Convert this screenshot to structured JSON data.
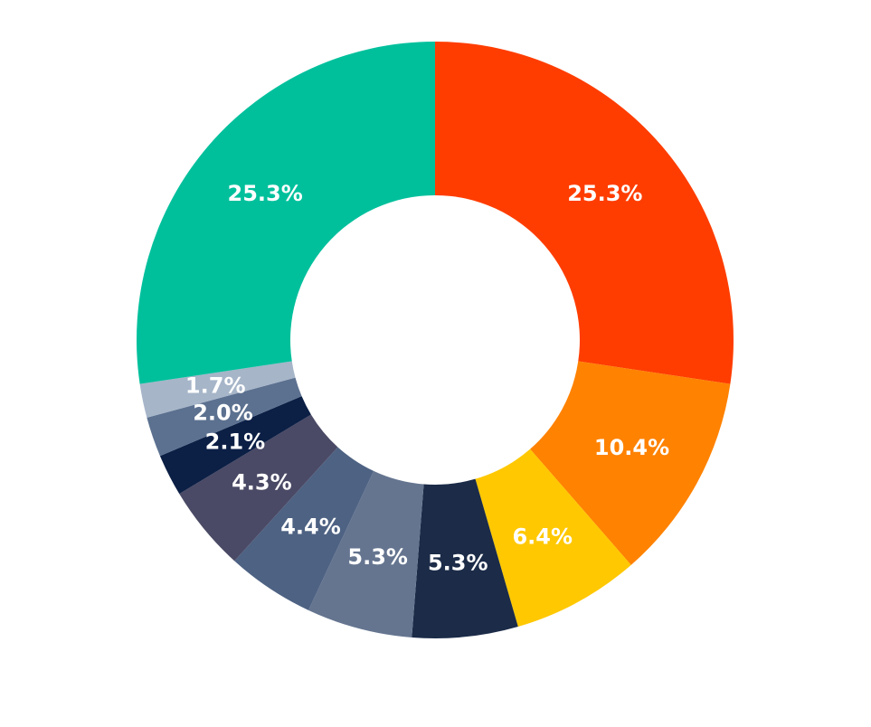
{
  "chart_data": {
    "type": "pie",
    "donut": true,
    "start_angle_deg": 0,
    "direction": "clockwise",
    "slices": [
      {
        "label": "25.3%",
        "value": 25.3,
        "color": "#FF3D00"
      },
      {
        "label": "10.4%",
        "value": 10.4,
        "color": "#FF8200"
      },
      {
        "label": "6.4%",
        "value": 6.4,
        "color": "#FFC800"
      },
      {
        "label": "5.3%",
        "value": 5.3,
        "color": "#1B2B48"
      },
      {
        "label": "5.3%",
        "value": 5.3,
        "color": "#657590"
      },
      {
        "label": "4.4%",
        "value": 4.4,
        "color": "#4E6283"
      },
      {
        "label": "4.3%",
        "value": 4.3,
        "color": "#4A4A66"
      },
      {
        "label": "2.1%",
        "value": 2.1,
        "color": "#0C1F45"
      },
      {
        "label": "2.0%",
        "value": 2.0,
        "color": "#5C7190"
      },
      {
        "label": "1.7%",
        "value": 1.7,
        "color": "#A6B5C8"
      },
      {
        "label": "25.3%",
        "value": 25.3,
        "color": "#00C09C"
      }
    ],
    "label_color": "#FFFFFF",
    "legend": "none"
  }
}
